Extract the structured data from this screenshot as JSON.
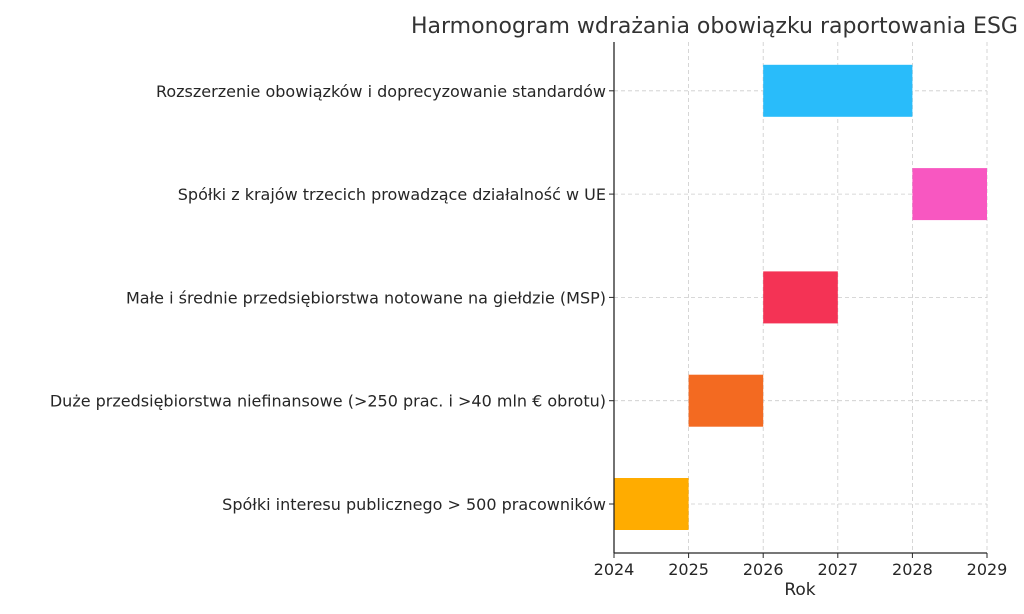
{
  "chart_data": {
    "type": "bar",
    "orientation": "horizontal-gantt",
    "title": "Harmonogram wdrażania obowiązku raportowania ESG",
    "xlabel": "Rok",
    "ylabel": "",
    "xlim": [
      2024,
      2029
    ],
    "xticks": [
      "2024",
      "2025",
      "2026",
      "2027",
      "2028",
      "2029"
    ],
    "grid": true,
    "categories": [
      "Spółki interesu publicznego > 500 pracowników",
      "Duże przedsiębiorstwa niefinansowe (>250 prac. i >40 mln € obrotu)",
      "Małe i średnie przedsiębiorstwa notowane na giełdzie (MSP)",
      "Spółki z krajów trzecich prowadzące działalność w UE",
      "Rozszerzenie obowiązków i doprecyzowanie standardów"
    ],
    "tasks": [
      {
        "start": 2024,
        "end": 2025,
        "color": "#FFAC00"
      },
      {
        "start": 2025,
        "end": 2026,
        "color": "#F36A21"
      },
      {
        "start": 2026,
        "end": 2027,
        "color": "#F43355"
      },
      {
        "start": 2028,
        "end": 2029,
        "color": "#F857C1"
      },
      {
        "start": 2026,
        "end": 2028,
        "color": "#29BCFA"
      }
    ]
  }
}
